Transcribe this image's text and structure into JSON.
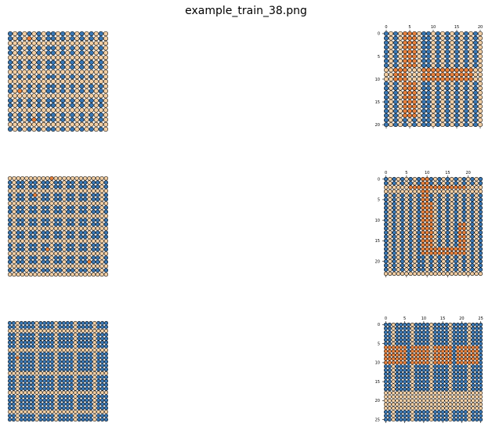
{
  "title": "example_train_38.png",
  "colors": {
    "blue": "#3a78b5",
    "dark": "#1f3f63",
    "peach": "#f3cfa4",
    "orange": "#e8823e",
    "outline": "#000000",
    "background": "#ffffff"
  },
  "panels": [
    {
      "id": "left-1",
      "side": "left",
      "rows": 21,
      "cols": 21,
      "base": "blue",
      "peach_rows": [
        2,
        5,
        8,
        10,
        13,
        16,
        19
      ],
      "peach_cols": [
        1,
        3,
        5,
        7,
        10,
        12,
        14,
        16,
        18,
        20
      ],
      "orange_cells": [
        [
          1,
          4
        ],
        [
          12,
          2
        ],
        [
          18,
          5
        ]
      ]
    },
    {
      "id": "right-1",
      "side": "right",
      "rows": 21,
      "cols": 21,
      "base": "blue",
      "xticks": [
        0,
        5,
        10,
        15,
        20
      ],
      "yticks": [
        0,
        5,
        10,
        15,
        20
      ],
      "peach_rows": [
        8,
        9,
        10
      ],
      "peach_cols": [
        1,
        3,
        5,
        7,
        10,
        12,
        14,
        16,
        18,
        20
      ],
      "orange_rects": [
        [
          0,
          4,
          7,
          6
        ],
        [
          8,
          2,
          10,
          4
        ],
        [
          8,
          8,
          10,
          18
        ],
        [
          11,
          4,
          18,
          6
        ]
      ]
    },
    {
      "id": "left-2",
      "side": "left",
      "rows": 24,
      "cols": 24,
      "base": "blue",
      "peach_rows": [
        0,
        3,
        6,
        9,
        12,
        15,
        18,
        21,
        23
      ],
      "peach_cols": [
        1,
        4,
        7,
        10,
        13,
        16,
        19,
        22
      ],
      "orange_cells": [
        [
          0,
          10
        ],
        [
          4,
          6
        ],
        [
          17,
          9
        ],
        [
          20,
          19
        ]
      ]
    },
    {
      "id": "right-2",
      "side": "right",
      "rows": 24,
      "cols": 24,
      "base": "blue",
      "xticks": [
        0,
        5,
        10,
        15,
        20
      ],
      "yticks": [
        0,
        5,
        10,
        15,
        20
      ],
      "peach_rows": [
        2,
        3,
        23
      ],
      "peach_cols": [
        1,
        3,
        5,
        7,
        10,
        12,
        14,
        16,
        18,
        20,
        22
      ],
      "orange_rects": [
        [
          0,
          9,
          18,
          10
        ],
        [
          2,
          6,
          2,
          19
        ],
        [
          6,
          9,
          18,
          11
        ],
        [
          17,
          12,
          18,
          19
        ],
        [
          11,
          18,
          18,
          19
        ]
      ]
    },
    {
      "id": "left-3",
      "side": "left",
      "rows": 26,
      "cols": 26,
      "base": "blue",
      "peach_rows": [
        2,
        7,
        13,
        18,
        23
      ],
      "peach_cols": [
        2,
        7,
        12,
        17,
        22
      ],
      "orange_cells": [
        [
          9,
          2
        ]
      ]
    },
    {
      "id": "right-3",
      "side": "right",
      "rows": 26,
      "cols": 26,
      "base": "blue",
      "xticks": [
        0,
        5,
        10,
        15,
        20,
        25
      ],
      "yticks": [
        0,
        5,
        10,
        15,
        20,
        25
      ],
      "peach_rows": [
        18,
        19,
        20,
        21,
        22
      ],
      "peach_cols": [
        2,
        7,
        12,
        17,
        22
      ],
      "orange_rects": [
        [
          6,
          0,
          10,
          5
        ],
        [
          6,
          7,
          10,
          11
        ],
        [
          6,
          13,
          10,
          17
        ],
        [
          6,
          19,
          10,
          24
        ]
      ],
      "peach_rects": [
        [
          18,
          0,
          22,
          16
        ]
      ]
    }
  ]
}
